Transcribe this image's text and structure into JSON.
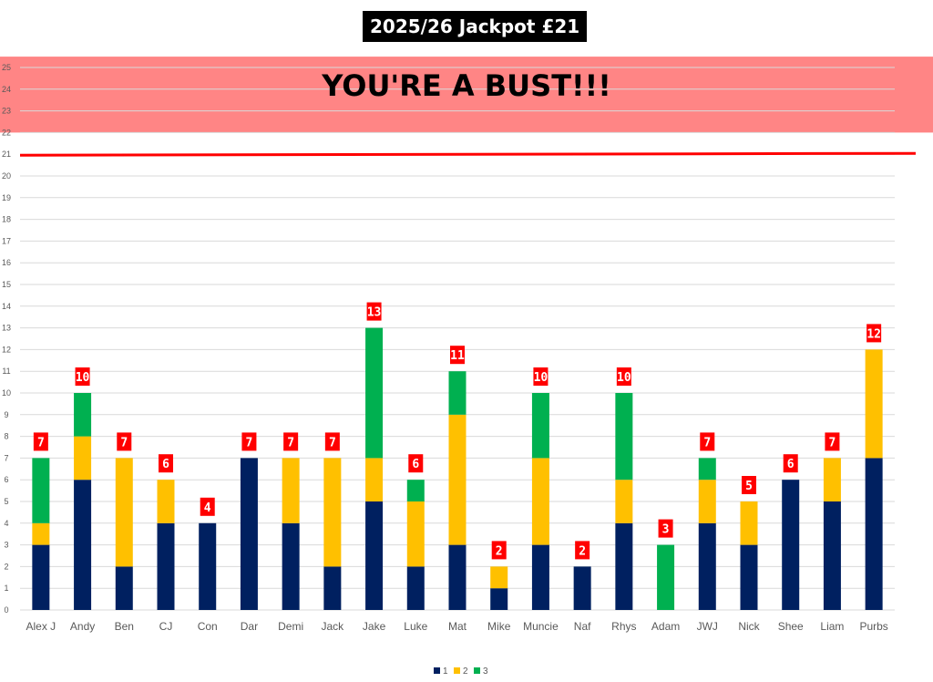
{
  "chart_data": {
    "type": "bar",
    "stacked": true,
    "title": "2025/26 Jackpot £21",
    "banner": "YOU'RE A BUST!!!",
    "categories": [
      "Alex J",
      "Andy",
      "Ben",
      "CJ",
      "Con",
      "Dar",
      "Demi",
      "Jack",
      "Jake",
      "Luke",
      "Mat",
      "Mike",
      "Muncie",
      "Naf",
      "Rhys",
      "Adam",
      "JWJ",
      "Nick",
      "Shee",
      "Liam",
      "Purbs"
    ],
    "series": [
      {
        "name": "1",
        "color": "#002060",
        "values": [
          3,
          6,
          2,
          4,
          4,
          7,
          4,
          2,
          5,
          2,
          3,
          1,
          3,
          2,
          4,
          0,
          4,
          3,
          6,
          5,
          7
        ]
      },
      {
        "name": "2",
        "color": "#FFC000",
        "values": [
          1,
          2,
          5,
          2,
          0,
          0,
          3,
          5,
          2,
          3,
          6,
          1,
          4,
          0,
          2,
          0,
          2,
          2,
          0,
          2,
          5
        ]
      },
      {
        "name": "3",
        "color": "#00B050",
        "values": [
          3,
          2,
          0,
          0,
          0,
          0,
          0,
          0,
          6,
          1,
          2,
          0,
          3,
          0,
          4,
          3,
          1,
          0,
          0,
          0,
          0
        ]
      }
    ],
    "totals": [
      7,
      10,
      7,
      6,
      4,
      7,
      7,
      7,
      13,
      6,
      11,
      2,
      10,
      2,
      10,
      3,
      7,
      5,
      6,
      7,
      12
    ],
    "ylim": [
      0,
      25
    ],
    "yticks": [
      0,
      1,
      2,
      3,
      4,
      5,
      6,
      7,
      8,
      9,
      10,
      11,
      12,
      13,
      14,
      15,
      16,
      17,
      18,
      19,
      20,
      21,
      22,
      23,
      24,
      25
    ],
    "jackpot_line": 21,
    "bust_zone": [
      22,
      25.5
    ],
    "grid": true,
    "legend_position": "bottom",
    "colors": {
      "bust_zone": "#FF8585",
      "jackpot_line": "#FF0000",
      "total_label_bg": "#FF0000",
      "total_label_text": "#FFFFFF",
      "grid": "#D9D9D9",
      "axis_text": "#595959"
    }
  }
}
